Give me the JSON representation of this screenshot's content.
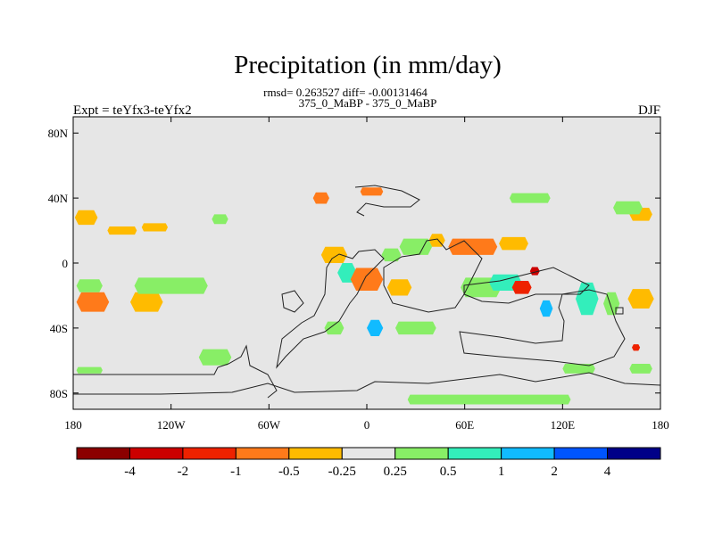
{
  "chart_data": {
    "type": "heatmap",
    "title": "Precipitation (in mm/day)",
    "stats_line": "rmsd= 0.263527 diff= -0.00131464",
    "subtitle": "375_0_MaBP - 375_0_MaBP",
    "left_label": "Expt = teYfx3-teYfx2",
    "right_label": "DJF",
    "xlim": [
      -180,
      180
    ],
    "ylim": [
      -90,
      90
    ],
    "x_ticks": [
      {
        "value": -180,
        "label": "180"
      },
      {
        "value": -120,
        "label": "120W"
      },
      {
        "value": -60,
        "label": "60W"
      },
      {
        "value": 0,
        "label": "0"
      },
      {
        "value": 60,
        "label": "60E"
      },
      {
        "value": 120,
        "label": "120E"
      },
      {
        "value": 180,
        "label": "180"
      }
    ],
    "y_ticks": [
      {
        "value": 80,
        "label": "80N"
      },
      {
        "value": 40,
        "label": "40N"
      },
      {
        "value": 0,
        "label": "0"
      },
      {
        "value": -40,
        "label": "40S"
      },
      {
        "value": -80,
        "label": "80S"
      }
    ],
    "colorbar": {
      "colors": [
        "#8b0000",
        "#cc0000",
        "#ee2200",
        "#ff7a1a",
        "#ffbb00",
        "#e6e6e6",
        "#88ee66",
        "#33eebb",
        "#11bbff",
        "#0055ff",
        "#000088"
      ],
      "labels": [
        "-4",
        "-2",
        "-1",
        "-0.5",
        "-0.25",
        "0.25",
        "0.5",
        "1",
        "2",
        "4"
      ]
    },
    "anomaly_patches": [
      {
        "lon": -172,
        "lat": 28,
        "w": 14,
        "h": 9,
        "level": 4
      },
      {
        "lon": -168,
        "lat": -24,
        "w": 20,
        "h": 12,
        "level": 3
      },
      {
        "lon": -135,
        "lat": -24,
        "w": 20,
        "h": 12,
        "level": 4
      },
      {
        "lon": -130,
        "lat": 22,
        "w": 16,
        "h": 5,
        "level": 4
      },
      {
        "lon": -150,
        "lat": 20,
        "w": 18,
        "h": 5,
        "level": 4
      },
      {
        "lon": -90,
        "lat": 27,
        "w": 10,
        "h": 6,
        "level": 6
      },
      {
        "lon": -120,
        "lat": -14,
        "w": 45,
        "h": 10,
        "level": 6
      },
      {
        "lon": -170,
        "lat": -14,
        "w": 16,
        "h": 8,
        "level": 6
      },
      {
        "lon": -28,
        "lat": 40,
        "w": 10,
        "h": 7,
        "level": 3
      },
      {
        "lon": 3,
        "lat": 44,
        "w": 14,
        "h": 5,
        "level": 3
      },
      {
        "lon": -20,
        "lat": 5,
        "w": 16,
        "h": 10,
        "level": 4
      },
      {
        "lon": -12,
        "lat": -6,
        "w": 12,
        "h": 12,
        "level": 7
      },
      {
        "lon": 0,
        "lat": -10,
        "w": 20,
        "h": 14,
        "level": 3
      },
      {
        "lon": 20,
        "lat": -15,
        "w": 15,
        "h": 10,
        "level": 4
      },
      {
        "lon": 15,
        "lat": 5,
        "w": 12,
        "h": 8,
        "level": 6
      },
      {
        "lon": 43,
        "lat": 14,
        "w": 10,
        "h": 8,
        "level": 4
      },
      {
        "lon": 30,
        "lat": 10,
        "w": 20,
        "h": 10,
        "level": 6
      },
      {
        "lon": 65,
        "lat": 10,
        "w": 30,
        "h": 10,
        "level": 3
      },
      {
        "lon": 90,
        "lat": 12,
        "w": 18,
        "h": 8,
        "level": 4
      },
      {
        "lon": 70,
        "lat": -15,
        "w": 25,
        "h": 12,
        "level": 6
      },
      {
        "lon": 85,
        "lat": -12,
        "w": 20,
        "h": 10,
        "level": 7
      },
      {
        "lon": 95,
        "lat": -15,
        "w": 12,
        "h": 8,
        "level": 2
      },
      {
        "lon": 103,
        "lat": -5,
        "w": 6,
        "h": 5,
        "level": 1
      },
      {
        "lon": 110,
        "lat": -28,
        "w": 8,
        "h": 10,
        "level": 8
      },
      {
        "lon": 135,
        "lat": -22,
        "w": 14,
        "h": 20,
        "level": 7
      },
      {
        "lon": 150,
        "lat": -25,
        "w": 10,
        "h": 14,
        "level": 6
      },
      {
        "lon": 168,
        "lat": -22,
        "w": 16,
        "h": 12,
        "level": 4
      },
      {
        "lon": 168,
        "lat": 30,
        "w": 14,
        "h": 8,
        "level": 4
      },
      {
        "lon": 100,
        "lat": 40,
        "w": 25,
        "h": 6,
        "level": 6
      },
      {
        "lon": 160,
        "lat": 34,
        "w": 18,
        "h": 8,
        "level": 6
      },
      {
        "lon": 5,
        "lat": -40,
        "w": 10,
        "h": 10,
        "level": 8
      },
      {
        "lon": -20,
        "lat": -40,
        "w": 12,
        "h": 8,
        "level": 6
      },
      {
        "lon": 30,
        "lat": -40,
        "w": 25,
        "h": 8,
        "level": 6
      },
      {
        "lon": -93,
        "lat": -58,
        "w": 20,
        "h": 10,
        "level": 6
      },
      {
        "lon": -170,
        "lat": -66,
        "w": 16,
        "h": 4,
        "level": 6
      },
      {
        "lon": 75,
        "lat": -84,
        "w": 100,
        "h": 6,
        "level": 6
      },
      {
        "lon": 130,
        "lat": -65,
        "w": 20,
        "h": 6,
        "level": 6
      },
      {
        "lon": 168,
        "lat": -65,
        "w": 14,
        "h": 6,
        "level": 6
      },
      {
        "lon": 165,
        "lat": -52,
        "w": 5,
        "h": 4,
        "level": 2
      }
    ]
  }
}
